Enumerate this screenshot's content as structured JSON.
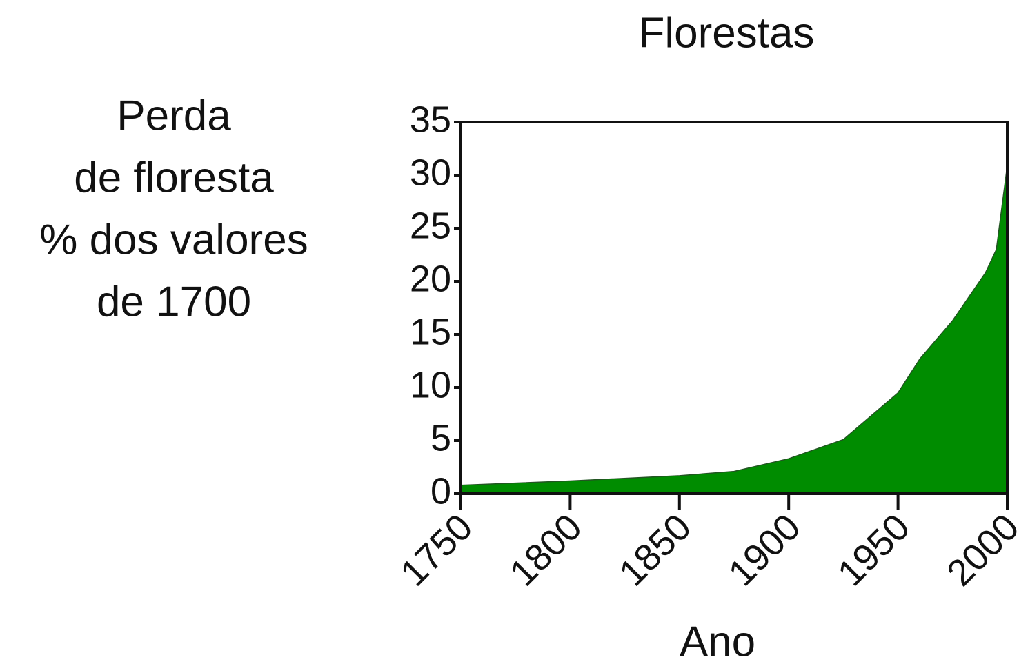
{
  "chart_data": {
    "type": "area",
    "title": "Florestas",
    "ylabel": [
      "Perda",
      "de floresta",
      "% dos valores",
      "de 1700"
    ],
    "xlabel": "Ano",
    "x": [
      1750,
      1800,
      1850,
      1875,
      1900,
      1925,
      1950,
      1960,
      1975,
      1990,
      1995,
      2000
    ],
    "series": [
      {
        "name": "Florestas",
        "color": "#008c00",
        "values": [
          0.8,
          1.2,
          1.7,
          2.1,
          3.3,
          5.1,
          9.5,
          12.7,
          16.3,
          20.8,
          23,
          30.9
        ]
      }
    ],
    "xlim": [
      1750,
      2000
    ],
    "xticks": [
      1750,
      1800,
      1850,
      1900,
      1950,
      2000
    ],
    "ylim": [
      0,
      35
    ],
    "yticks": [
      0,
      5,
      10,
      15,
      20,
      25,
      30,
      35
    ]
  }
}
